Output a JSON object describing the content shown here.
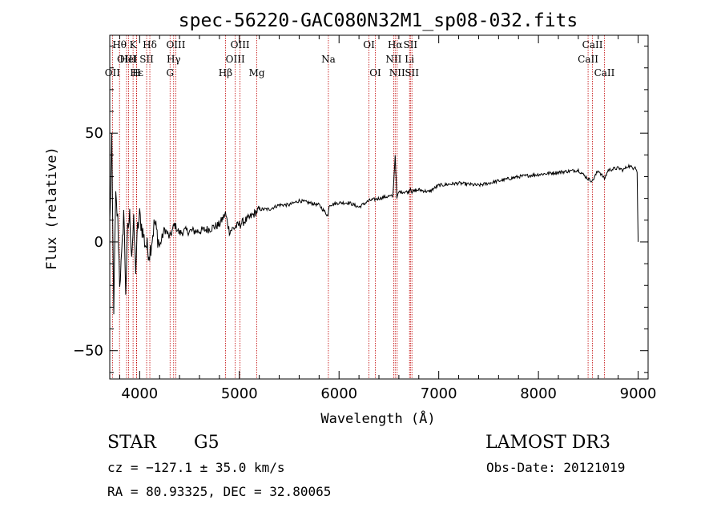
{
  "chart_data": {
    "type": "line",
    "title": "spec-56220-GAC080N32M1_sp08-032.fits",
    "xlabel": "Wavelength (Å)",
    "ylabel": "Flux (relative)",
    "xlim": [
      3700,
      9100
    ],
    "ylim": [
      -63,
      95
    ],
    "xticks": [
      4000,
      5000,
      6000,
      7000,
      8000,
      9000
    ],
    "yticks": [
      -50,
      0,
      50
    ],
    "series": [
      {
        "name": "flux",
        "x": [
          3700,
          3720,
          3740,
          3760,
          3780,
          3800,
          3820,
          3840,
          3860,
          3880,
          3900,
          3920,
          3940,
          3960,
          3980,
          4000,
          4050,
          4100,
          4150,
          4200,
          4250,
          4300,
          4350,
          4400,
          4450,
          4500,
          4600,
          4700,
          4800,
          4860,
          4900,
          5000,
          5100,
          5200,
          5300,
          5400,
          5500,
          5600,
          5700,
          5800,
          5890,
          5900,
          6000,
          6100,
          6200,
          6300,
          6400,
          6500,
          6540,
          6563,
          6580,
          6600,
          6700,
          6716,
          6731,
          6800,
          6900,
          7000,
          7200,
          7400,
          7600,
          7800,
          8000,
          8200,
          8400,
          8498,
          8542,
          8600,
          8662,
          8700,
          8800,
          8850,
          8900,
          8950,
          8970,
          8990,
          9000
        ],
        "y": [
          8,
          45,
          -30,
          20,
          10,
          -18,
          -8,
          15,
          -22,
          5,
          12,
          -5,
          8,
          -12,
          6,
          12,
          0,
          -5,
          9,
          -2,
          6,
          2,
          8,
          4,
          5,
          5,
          5,
          6,
          8,
          13,
          5,
          8,
          11,
          15,
          15,
          17,
          17,
          19,
          18,
          17,
          12,
          17,
          18,
          18,
          16,
          19,
          20,
          21,
          21,
          40,
          20,
          23,
          23,
          25,
          23,
          24,
          23,
          26,
          27,
          26,
          28,
          30,
          31,
          32,
          33,
          29,
          28,
          33,
          29,
          33,
          34,
          33,
          35,
          34,
          35,
          32,
          0
        ]
      }
    ],
    "spectral_lines": [
      {
        "label": "OII",
        "wavelength": 3727,
        "row": 2
      },
      {
        "label": "Hθ",
        "wavelength": 3798,
        "row": 0
      },
      {
        "label": "OIII",
        "wavelength": 3869,
        "row": 1
      },
      {
        "label": "HeI",
        "wavelength": 3889,
        "row": 1
      },
      {
        "label": "K",
        "wavelength": 3934,
        "row": 0
      },
      {
        "label": "Hε",
        "wavelength": 3970,
        "row": 2
      },
      {
        "label": "H",
        "wavelength": 3968,
        "row": 2
      },
      {
        "label": "SII",
        "wavelength": 4070,
        "row": 1
      },
      {
        "label": "Hδ",
        "wavelength": 4102,
        "row": 0
      },
      {
        "label": "G",
        "wavelength": 4305,
        "row": 2
      },
      {
        "label": "Hγ",
        "wavelength": 4341,
        "row": 1
      },
      {
        "label": "OIII",
        "wavelength": 4363,
        "row": 0
      },
      {
        "label": "Hβ",
        "wavelength": 4861,
        "row": 2
      },
      {
        "label": "OIII",
        "wavelength": 4959,
        "row": 1
      },
      {
        "label": "OIII",
        "wavelength": 5007,
        "row": 0
      },
      {
        "label": "Mg",
        "wavelength": 5175,
        "row": 2
      },
      {
        "label": "Na",
        "wavelength": 5893,
        "row": 1
      },
      {
        "label": "OI",
        "wavelength": 6300,
        "row": 0
      },
      {
        "label": "OI",
        "wavelength": 6364,
        "row": 2
      },
      {
        "label": "NII",
        "wavelength": 6548,
        "row": 1
      },
      {
        "label": "Hα",
        "wavelength": 6563,
        "row": 0
      },
      {
        "label": "NII",
        "wavelength": 6583,
        "row": 2
      },
      {
        "label": "Li",
        "wavelength": 6707,
        "row": 1
      },
      {
        "label": "SII",
        "wavelength": 6716,
        "row": 0
      },
      {
        "label": "SII",
        "wavelength": 6731,
        "row": 2
      },
      {
        "label": "CaII",
        "wavelength": 8498,
        "row": 1
      },
      {
        "label": "CaII",
        "wavelength": 8542,
        "row": 0
      },
      {
        "label": "CaII",
        "wavelength": 8662,
        "row": 2
      }
    ]
  },
  "info": {
    "object_class": "STAR",
    "subclass": "G5",
    "survey": "LAMOST DR3",
    "cz": "cz = −127.1 ± 35.0 km/s",
    "obs_date": "Obs-Date: 20121019",
    "coords": "RA =  80.93325, DEC =  32.80065"
  },
  "colors": {
    "line": "#000000",
    "marker_lines": "#c00000"
  }
}
